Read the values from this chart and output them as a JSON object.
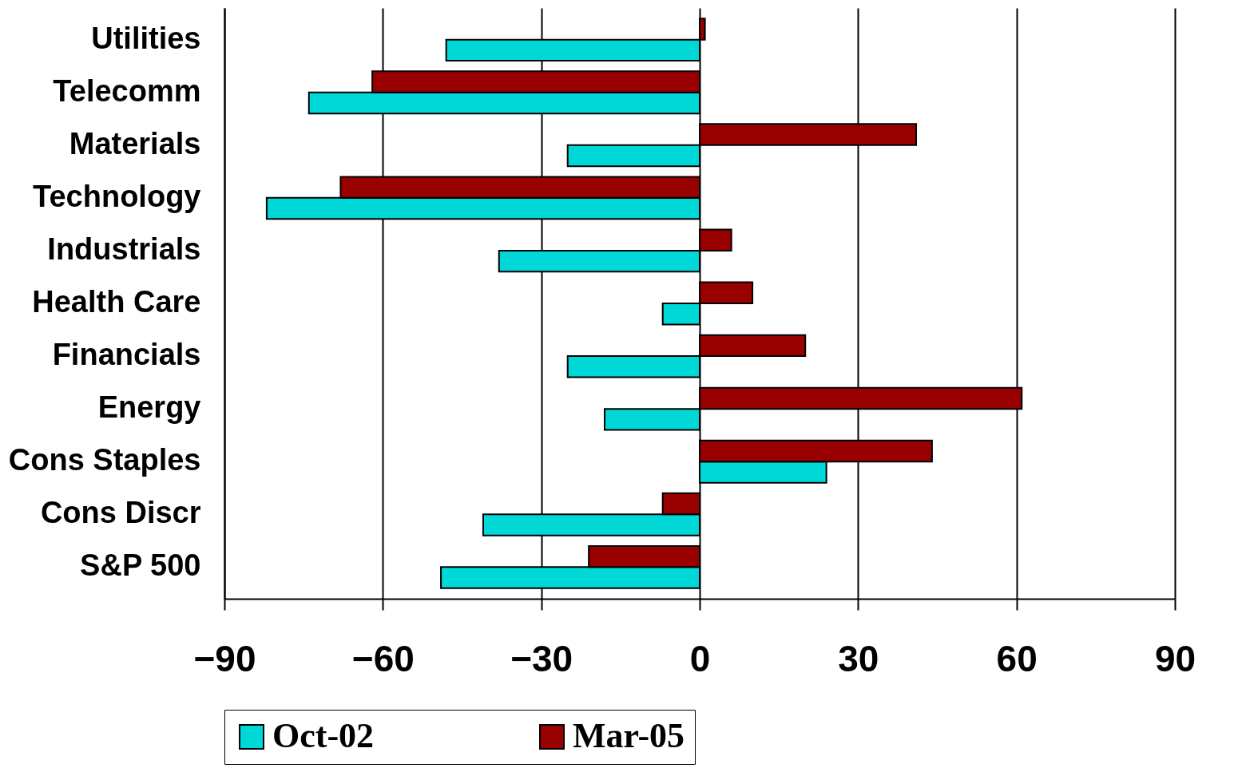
{
  "chart_data": {
    "type": "bar",
    "orientation": "horizontal",
    "categories": [
      "Utilities",
      "Telecomm",
      "Materials",
      "Technology",
      "Industrials",
      "Health Care",
      "Financials",
      "Energy",
      "Cons Staples",
      "Cons Discr ",
      "S&P 500"
    ],
    "series": [
      {
        "name": "Oct-02",
        "color": "#00d8d8",
        "values": [
          -48,
          -74,
          -25,
          -82,
          -38,
          -7,
          -25,
          -18,
          24,
          -41,
          -49
        ]
      },
      {
        "name": "Mar-05",
        "color": "#990000",
        "values": [
          1,
          -62,
          41,
          -68,
          6,
          10,
          20,
          61,
          44,
          -7,
          -21
        ]
      }
    ],
    "xlim": [
      -90,
      90
    ],
    "xticks": [
      -90,
      -60,
      -30,
      0,
      30,
      60,
      90
    ],
    "grid": "x",
    "legend": "bottom"
  }
}
